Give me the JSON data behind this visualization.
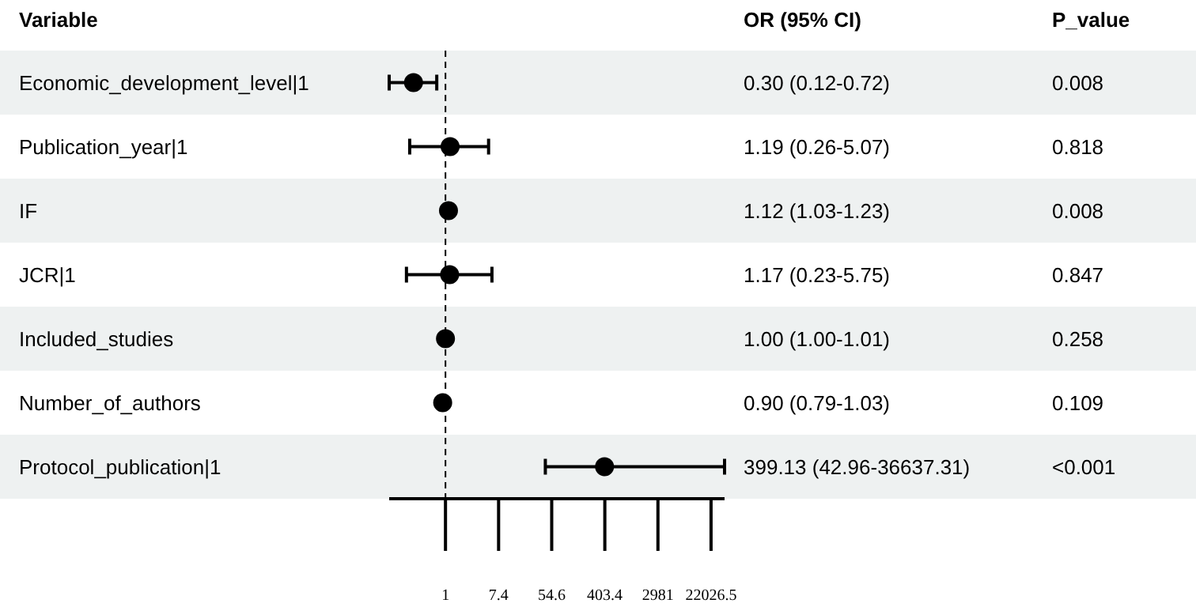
{
  "chart_data": {
    "type": "scatter",
    "orientation": "horizontal",
    "ylabel": "Variable",
    "categories": [
      "Economic_development_level|1",
      "Publication_year|1",
      "IF",
      "JCR|1",
      "Included_studies",
      "Number_of_authors",
      "Protocol_publication|1"
    ],
    "values": [
      0.3,
      1.19,
      1.12,
      1.17,
      1.0,
      0.9,
      399.13
    ],
    "errors": [
      [
        0.12,
        0.72
      ],
      [
        0.26,
        5.07
      ],
      null,
      [
        0.23,
        5.75
      ],
      null,
      null,
      [
        42.96,
        36637.31
      ]
    ],
    "color": "#000000",
    "marker": "circle",
    "log": "x",
    "xlim": [
      0.12,
      36637.31
    ],
    "xticks": [
      1,
      {
        "value": 7.389,
        "label": "7.4"
      },
      {
        "value": 54.598,
        "label": "54.6"
      },
      {
        "value": 403.43,
        "label": "403.4"
      },
      {
        "value": 2980.96,
        "label": "2981"
      },
      {
        "value": 22026.47,
        "label": "22026.5"
      }
    ],
    "ref_lines": [
      {
        "axis": "x",
        "value": 1,
        "line_style": "dashed",
        "color": "#000000"
      }
    ],
    "annotations": [
      "OR (95% CI)",
      "P_value",
      "0.30 (0.12-0.72)",
      "0.008",
      "1.19 (0.26-5.07)",
      "0.818",
      "1.12 (1.03-1.23)",
      "0.008",
      "1.17 (0.23-5.75)",
      "0.847",
      "1.00 (1.00-1.01)",
      "0.258",
      "0.90 (0.79-1.03)",
      "0.109",
      "399.13 (42.96-36637.31)",
      "<0.001"
    ]
  }
}
